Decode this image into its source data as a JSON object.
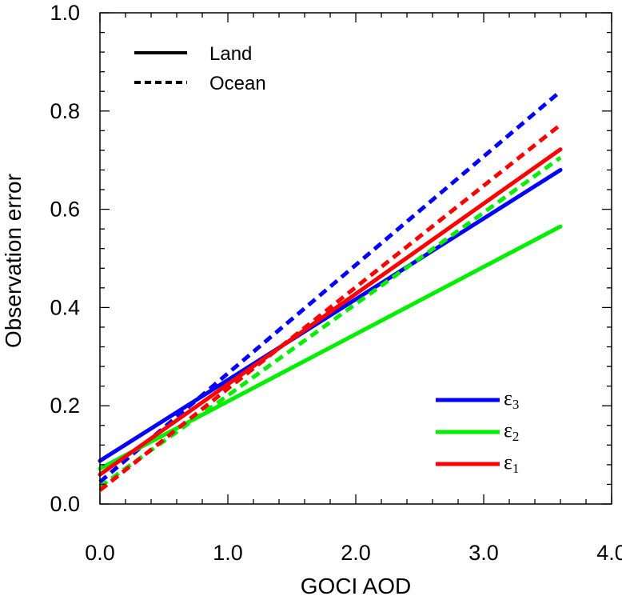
{
  "chart_data": {
    "type": "line",
    "xlabel": "GOCI AOD",
    "ylabel": "Observation error",
    "xlim": [
      0,
      4
    ],
    "ylim": [
      0,
      1
    ],
    "xticks": [
      {
        "value": 0,
        "label": "0.0"
      },
      {
        "value": 1,
        "label": "1.0"
      },
      {
        "value": 2,
        "label": "2.0"
      },
      {
        "value": 3,
        "label": "3.0"
      },
      {
        "value": 4,
        "label": "4.0"
      }
    ],
    "yticks": [
      {
        "value": 0,
        "label": "0.0"
      },
      {
        "value": 0.2,
        "label": "0.2"
      },
      {
        "value": 0.4,
        "label": "0.4"
      },
      {
        "value": 0.6,
        "label": "0.6"
      },
      {
        "value": 0.8,
        "label": "0.8"
      },
      {
        "value": 1.0,
        "label": "1.0"
      }
    ],
    "grid": false,
    "style_legend": {
      "placement": "top-left",
      "entries": [
        {
          "label": "Land",
          "style": "solid"
        },
        {
          "label": "Ocean",
          "style": "dashed"
        }
      ]
    },
    "color_legend": {
      "placement": "bottom-right",
      "entries": [
        {
          "symbol": "ε",
          "subscript": "3",
          "color": "#0000ff"
        },
        {
          "symbol": "ε",
          "subscript": "2",
          "color": "#00ee00"
        },
        {
          "symbol": "ε",
          "subscript": "1",
          "color": "#ff0000"
        }
      ]
    },
    "series": [
      {
        "key": "eps3-land",
        "color": "#0000ff",
        "style": "solid",
        "x": [
          0,
          3.6
        ],
        "y": [
          0.088,
          0.68
        ]
      },
      {
        "key": "eps3-ocean",
        "color": "#0000ff",
        "style": "dashed",
        "x": [
          0,
          3.6
        ],
        "y": [
          0.045,
          0.84
        ]
      },
      {
        "key": "eps2-land",
        "color": "#00ee00",
        "style": "solid",
        "x": [
          0,
          3.6
        ],
        "y": [
          0.072,
          0.565
        ]
      },
      {
        "key": "eps2-ocean",
        "color": "#00ee00",
        "style": "dashed",
        "x": [
          0,
          3.6
        ],
        "y": [
          0.035,
          0.705
        ]
      },
      {
        "key": "eps1-land",
        "color": "#ff0000",
        "style": "solid",
        "x": [
          0,
          3.6
        ],
        "y": [
          0.06,
          0.722
        ]
      },
      {
        "key": "eps1-ocean",
        "color": "#ff0000",
        "style": "dashed",
        "x": [
          0,
          3.6
        ],
        "y": [
          0.028,
          0.772
        ]
      }
    ]
  }
}
